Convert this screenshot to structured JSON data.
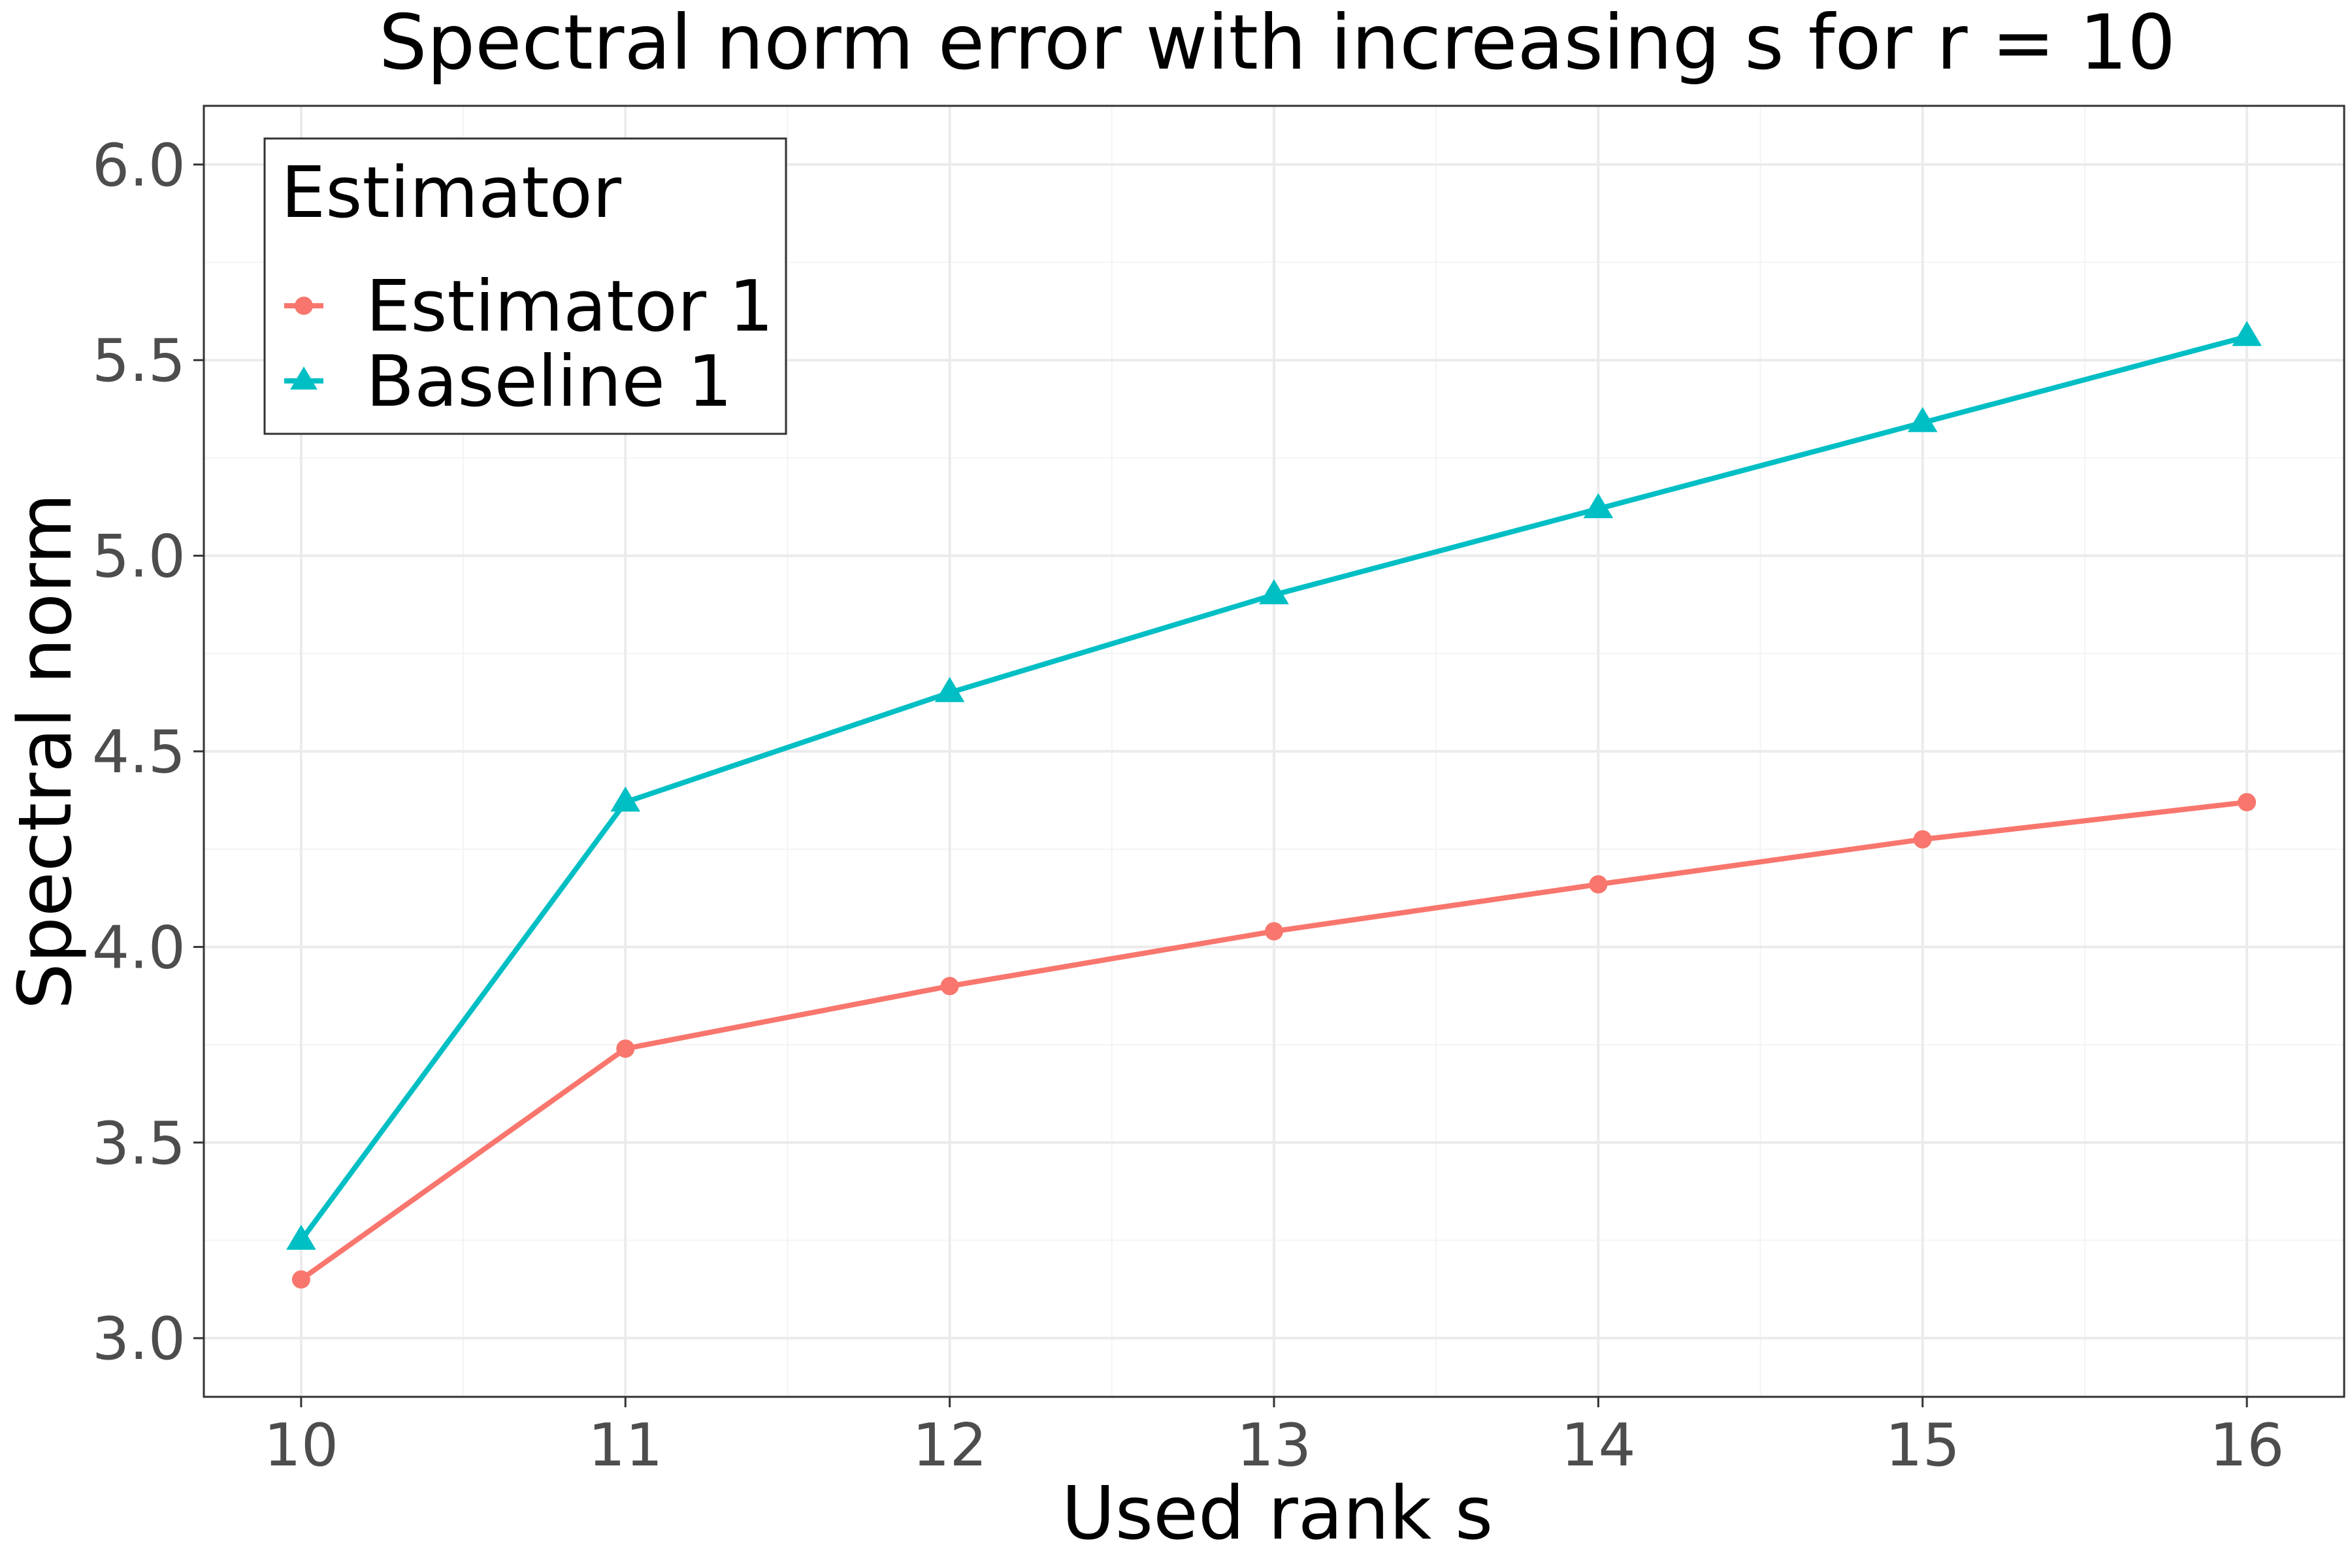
{
  "chart_data": {
    "type": "line",
    "title": "Spectral norm error with increasing s for r = 10",
    "xlabel": "Used rank s",
    "ylabel": "Spectral norm",
    "x": [
      10,
      11,
      12,
      13,
      14,
      15,
      16
    ],
    "xlim": [
      9.7,
      16.3
    ],
    "ylim": [
      2.85,
      6.15
    ],
    "xticks": [
      10,
      11,
      12,
      13,
      14,
      15,
      16
    ],
    "yticks": [
      "3.0",
      "3.5",
      "4.0",
      "4.5",
      "5.0",
      "5.5",
      "6.0"
    ],
    "grid": true,
    "legend": {
      "title": "Estimator",
      "placement": "top-left"
    },
    "series": [
      {
        "name": "Estimator 1",
        "color": "#F8766D",
        "marker": "circle",
        "values": [
          3.15,
          3.74,
          3.9,
          4.04,
          4.16,
          4.275,
          4.37
        ]
      },
      {
        "name": "Baseline 1",
        "color": "#00BFC4",
        "marker": "triangle",
        "values": [
          3.25,
          4.37,
          4.65,
          4.9,
          5.12,
          5.34,
          5.56
        ]
      }
    ]
  }
}
